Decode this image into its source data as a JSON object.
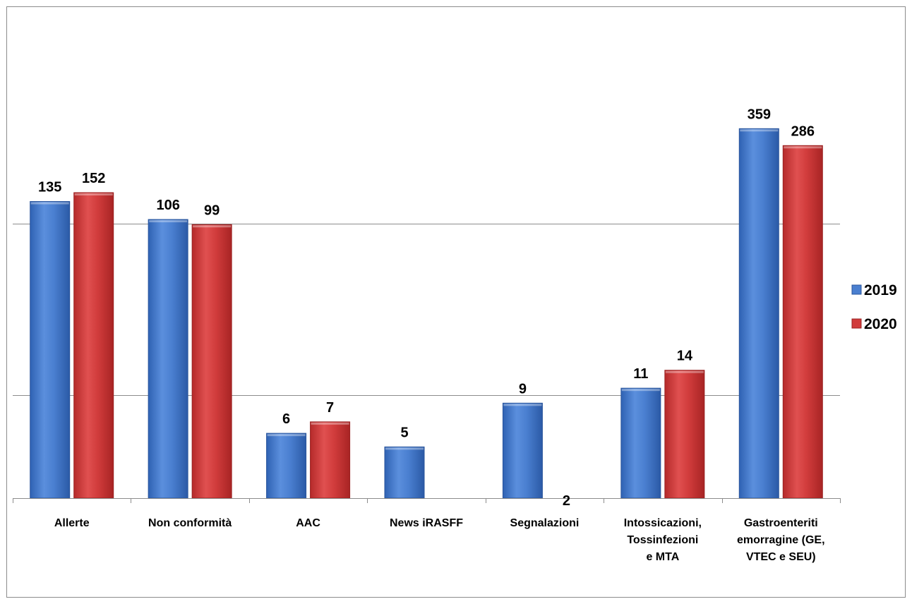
{
  "chart_data": {
    "type": "bar",
    "axis_scale": "log",
    "gridlines": true,
    "legend_position": "right",
    "categories": [
      "Allerte",
      "Non conformità",
      "AAC",
      "News iRASFF",
      "Segnalazioni",
      "Intossicazioni, Tossinfezioni e MTA",
      "Gastroenteriti emorragine (GE, VTEC e SEU)"
    ],
    "category_lines": [
      [
        "Allerte"
      ],
      [
        "Non conformità"
      ],
      [
        "AAC"
      ],
      [
        "News iRASFF"
      ],
      [
        "Segnalazioni"
      ],
      [
        "Intossicazioni,",
        "Tossinfezioni",
        "e MTA"
      ],
      [
        "Gastroenteriti",
        "emorragine (GE,",
        "VTEC e SEU)"
      ]
    ],
    "series": [
      {
        "name": "2019",
        "values": [
          135,
          106,
          6,
          5,
          9,
          11,
          359
        ],
        "labels": [
          "135",
          "106",
          "6",
          "5",
          "9",
          "11",
          "359"
        ]
      },
      {
        "name": "2020",
        "values": [
          152,
          99,
          7,
          null,
          2,
          14,
          286
        ],
        "labels": [
          "152",
          "99",
          "7",
          "",
          "2",
          "14",
          "286"
        ]
      }
    ],
    "colors": {
      "2019": "#4a7fd0",
      "2020": "#d13c3c"
    }
  }
}
